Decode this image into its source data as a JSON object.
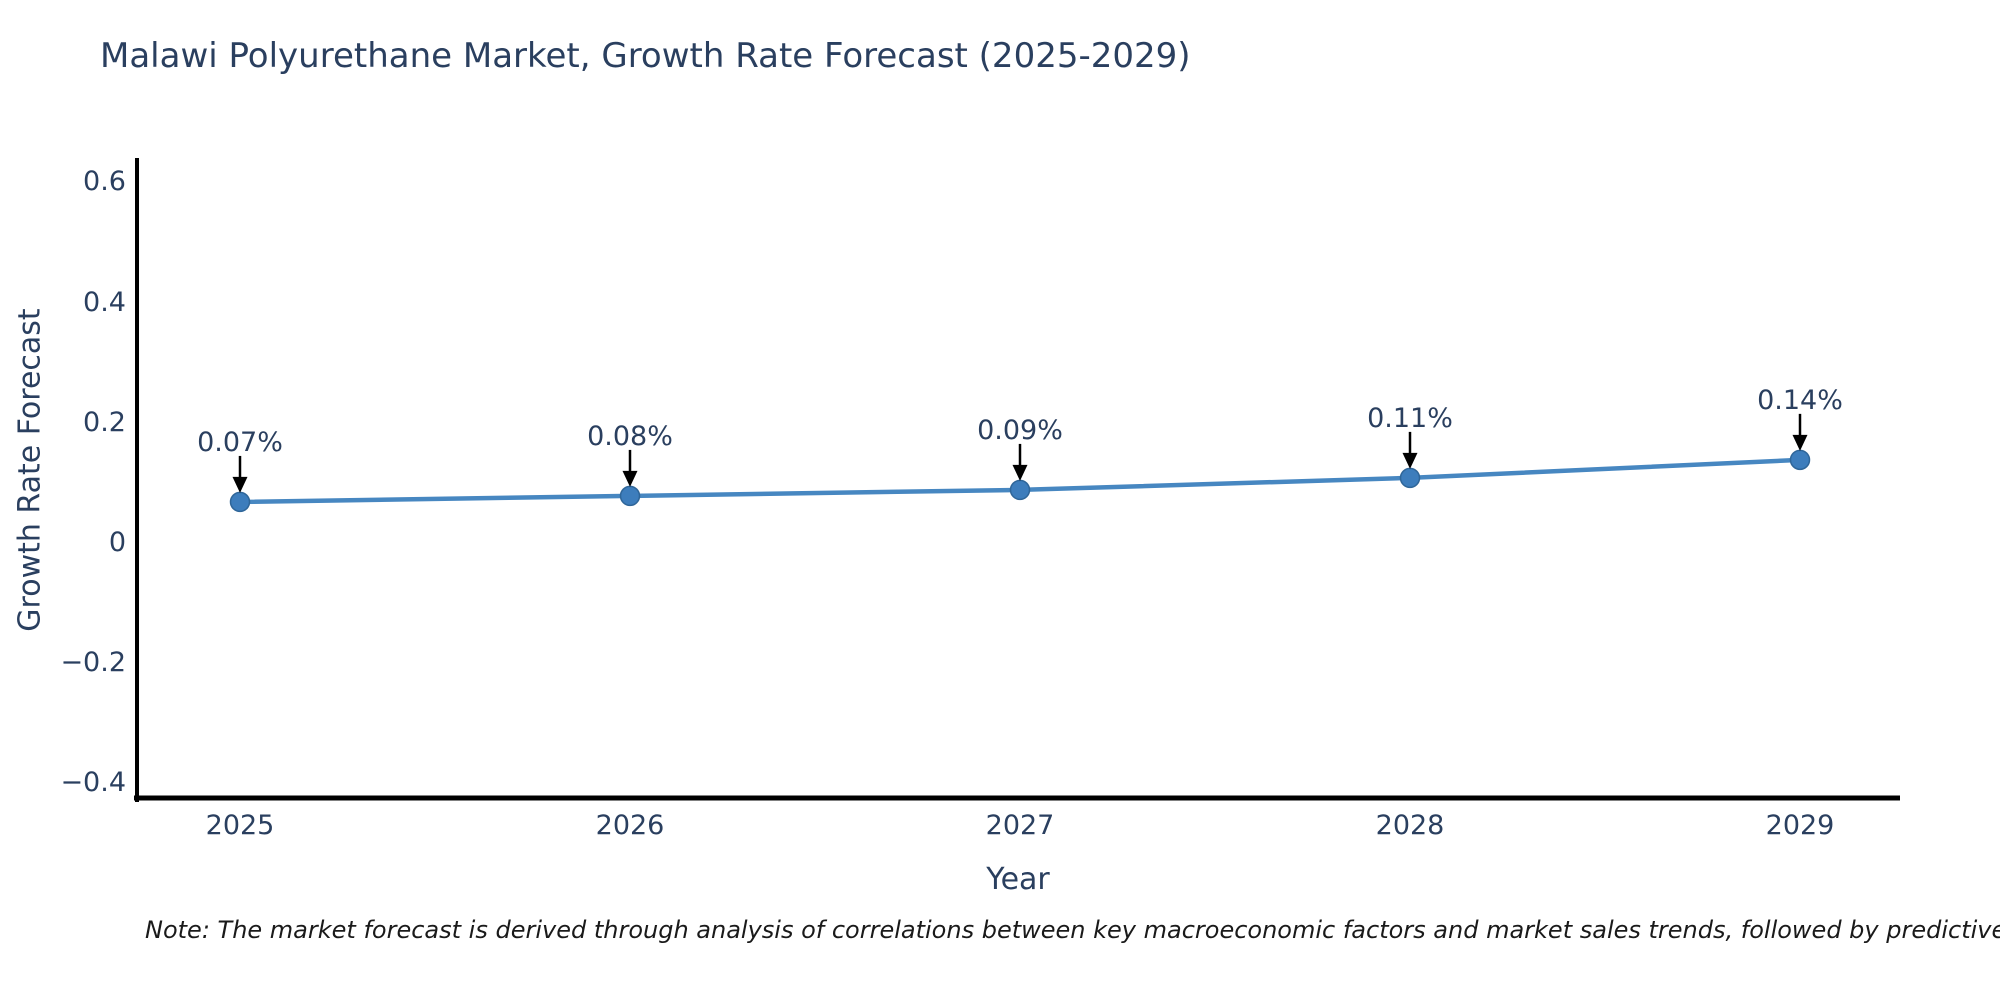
{
  "title_block": {
    "title": "Malawi Polyurethane Market, Growth Rate Forecast (2025-2029)"
  },
  "note": "Note: The market forecast is derived through analysis of correlations between key macroeconomic factors and market sales trends, followed by predictive modeling to project future sales.",
  "colors": {
    "line": "#4787c1",
    "marker_fill": "#3d7dbc",
    "marker_edge": "#2f6699",
    "axis": "#000000",
    "arrow": "#000000",
    "text": "#2a3f5f",
    "note_text": "#1a1a1a",
    "background": "#ffffff"
  },
  "chart_data": {
    "type": "line",
    "title": "Malawi Polyurethane Market, Growth Rate Forecast (2025-2029)",
    "xlabel": "Year",
    "ylabel": "Growth Rate Forecast",
    "x": [
      2025,
      2026,
      2027,
      2028,
      2029
    ],
    "series": [
      {
        "name": "Growth Rate Forecast",
        "values": [
          0.07,
          0.08,
          0.09,
          0.11,
          0.14
        ],
        "point_labels": [
          "0.07%",
          "0.08%",
          "0.09%",
          "0.11%",
          "0.14%"
        ]
      }
    ],
    "annotations": [
      "0.07%",
      "0.08%",
      "0.09%",
      "0.11%",
      "0.14%"
    ],
    "yticks": [
      0.6,
      0.4,
      0.2,
      0,
      -0.2,
      -0.4
    ],
    "ytick_labels": [
      "0.6",
      "0.4",
      "0.2",
      "0",
      "−0.2",
      "−0.4"
    ],
    "xtick_labels": [
      "2025",
      "2026",
      "2027",
      "2028",
      "2029"
    ],
    "ylim": [
      -0.43,
      0.64
    ],
    "grid": false,
    "legend": false,
    "marker": "circle-with-down-arrow-annotation"
  }
}
